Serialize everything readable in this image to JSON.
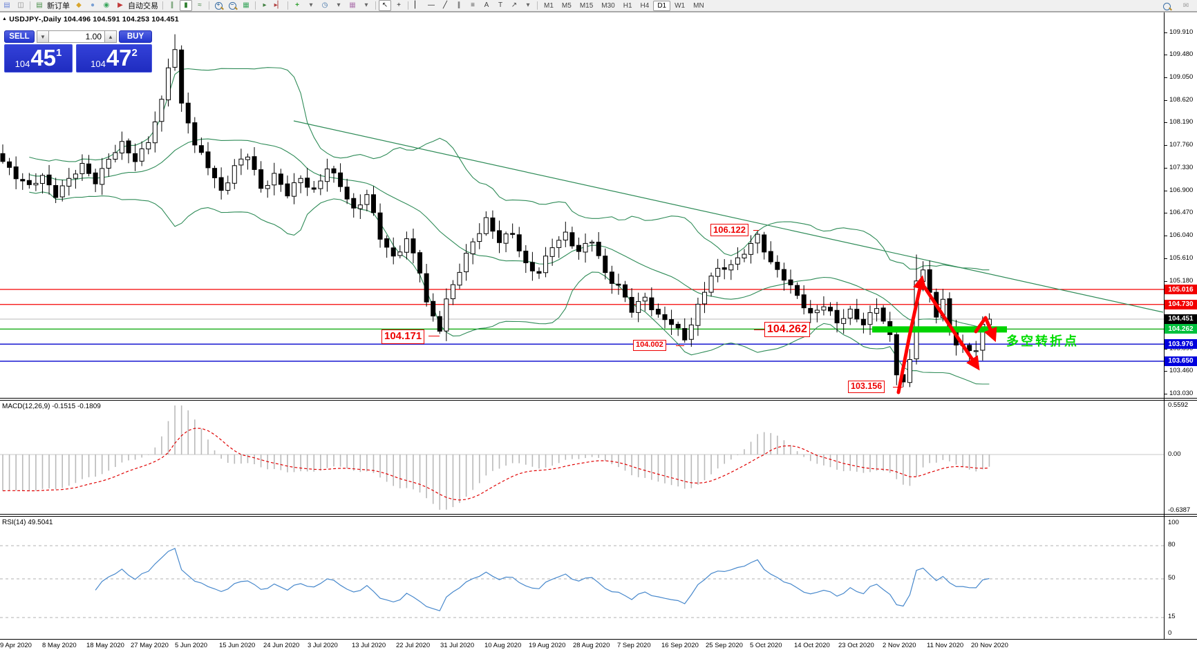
{
  "toolbar": {
    "glyphs": {
      "chart_window": "▤",
      "data_window": "◫",
      "new_order": "▤",
      "metaeditor": "◆",
      "profile": "●",
      "navigator": "◉",
      "autotrade": "▶",
      "bars": "∥",
      "candles": "▮",
      "line_chart": "≈",
      "tiles": "▦",
      "autoscroll": "▸",
      "shift": "▸▏",
      "indicators": "+",
      "clock": "◷",
      "template": "▦",
      "caret": "▾",
      "cursor": "↖",
      "crosshair": "+",
      "vline": "▏",
      "hline": "—",
      "trendline": "╱",
      "channel": "∥",
      "fibonacci": "≡",
      "text": "A",
      "text_label": "T",
      "arrows_tool": "↗",
      "chat": "✉",
      "symbol_marker": "▲"
    },
    "new_order_label": "新订单",
    "autotrade_label": "自动交易",
    "timeframes": [
      "M1",
      "M5",
      "M15",
      "M30",
      "H1",
      "H4",
      "D1",
      "W1",
      "MN"
    ],
    "active_timeframe": "D1"
  },
  "quote_bar": {
    "symbol": "USDJPY-,Daily",
    "open": "104.496",
    "high": "104.591",
    "low": "104.253",
    "close": "104.451"
  },
  "trade_panel": {
    "sell_label": "SELL",
    "buy_label": "BUY",
    "volume": "1.00",
    "sell_small": "104",
    "sell_big": "45",
    "sell_sup": "1",
    "buy_small": "104",
    "buy_big": "47",
    "buy_sup": "2"
  },
  "price_axis": {
    "ticks": [
      "109.910",
      "109.480",
      "109.050",
      "108.620",
      "108.190",
      "107.760",
      "107.330",
      "106.900",
      "106.470",
      "106.040",
      "105.610",
      "105.180",
      "104.750",
      "104.320",
      "103.890",
      "103.460",
      "103.030"
    ],
    "badges": [
      {
        "label": "105.016",
        "price": 105.016,
        "bg": "#f20000"
      },
      {
        "label": "104.730",
        "price": 104.73,
        "bg": "#f20000"
      },
      {
        "label": "104.451",
        "price": 104.451,
        "bg": "#000000"
      },
      {
        "label": "104.262",
        "price": 104.262,
        "bg": "#00c13c"
      },
      {
        "label": "103.976",
        "price": 103.976,
        "bg": "#0000dd"
      },
      {
        "label": "103.650",
        "price": 103.65,
        "bg": "#0000dd"
      }
    ]
  },
  "levels": [
    {
      "price": 105.016,
      "color": "#f40000",
      "w": 1.2
    },
    {
      "price": 104.73,
      "color": "#f40000",
      "w": 1.2
    },
    {
      "price": 104.451,
      "color": "#b8b8b8",
      "w": 1
    },
    {
      "price": 104.262,
      "color": "#00a400",
      "w": 1.2
    },
    {
      "price": 103.976,
      "color": "#0000cc",
      "w": 1.4
    },
    {
      "price": 103.65,
      "color": "#0000cc",
      "w": 1.4
    }
  ],
  "callouts": [
    {
      "text": "106.122"
    },
    {
      "text": "104.171"
    },
    {
      "text": "104.262"
    },
    {
      "text": "104.002"
    },
    {
      "text": "103.156"
    }
  ],
  "annotations": {
    "turning_point_text": "多空转折点",
    "turning_point_color": "#00dc00",
    "green_bar_price": 104.262,
    "arrow_color": "#ff0000"
  },
  "macd_panel": {
    "title": "MACD(12,26,9) -0.1515 -0.1809",
    "scale_top": "0.5592",
    "scale_mid": "0.00",
    "scale_bottom": "-0.6387"
  },
  "rsi_panel": {
    "title": "RSI(14) 49.5041",
    "levels": [
      {
        "label": "100",
        "v": 100,
        "dashed": false
      },
      {
        "label": "80",
        "v": 80,
        "dashed": true
      },
      {
        "label": "50",
        "v": 50,
        "dashed": true
      },
      {
        "label": "15",
        "v": 15,
        "dashed": true
      },
      {
        "label": "0",
        "v": 0,
        "dashed": false
      }
    ]
  },
  "dates": {
    "labels": [
      "9 Apr 2020",
      "8 May 2020",
      "18 May 2020",
      "27 May 2020",
      "5 Jun 2020",
      "15 Jun 2020",
      "24 Jun 2020",
      "3 Jul 2020",
      "13 Jul 2020",
      "22 Jul 2020",
      "31 Jul 2020",
      "10 Aug 2020",
      "19 Aug 2020",
      "28 Aug 2020",
      "7 Sep 2020",
      "16 Sep 2020",
      "25 Sep 2020",
      "5 Oct 2020",
      "14 Oct 2020",
      "23 Oct 2020",
      "2 Nov 2020",
      "11 Nov 2020",
      "20 Nov 2020"
    ]
  },
  "chart_data": {
    "type": "candlestick",
    "symbol": "USDJPY",
    "timeframe": "Daily",
    "bars": 150,
    "band_color": "#2E8B57",
    "bollinger": {
      "period": 20,
      "dev": 2
    },
    "macd": {
      "fast": 12,
      "slow": 26,
      "signal": 9
    },
    "rsi_period": 14,
    "price_path": [
      [
        0,
        107.45
      ],
      [
        2,
        107.2
      ],
      [
        4,
        106.95
      ],
      [
        6,
        107.15
      ],
      [
        8,
        106.85
      ],
      [
        10,
        107.1
      ],
      [
        12,
        107.35
      ],
      [
        14,
        107.1
      ],
      [
        16,
        107.5
      ],
      [
        18,
        107.75
      ],
      [
        20,
        107.5
      ],
      [
        22,
        107.85
      ],
      [
        24,
        108.55
      ],
      [
        25,
        109.25
      ],
      [
        26,
        109.6
      ],
      [
        27,
        108.55
      ],
      [
        28,
        108.25
      ],
      [
        29,
        107.75
      ],
      [
        31,
        107.35
      ],
      [
        33,
        106.9
      ],
      [
        35,
        107.35
      ],
      [
        37,
        107.55
      ],
      [
        39,
        106.95
      ],
      [
        41,
        107.2
      ],
      [
        43,
        106.8
      ],
      [
        45,
        107.15
      ],
      [
        47,
        106.9
      ],
      [
        49,
        107.3
      ],
      [
        51,
        107.0
      ],
      [
        53,
        106.55
      ],
      [
        55,
        106.8
      ],
      [
        57,
        106.0
      ],
      [
        59,
        105.65
      ],
      [
        61,
        105.95
      ],
      [
        63,
        105.35
      ],
      [
        64,
        104.75
      ],
      [
        66,
        104.3
      ],
      [
        67,
        104.8
      ],
      [
        69,
        105.35
      ],
      [
        71,
        105.95
      ],
      [
        73,
        106.35
      ],
      [
        75,
        105.9
      ],
      [
        77,
        106.1
      ],
      [
        79,
        105.5
      ],
      [
        81,
        105.3
      ],
      [
        83,
        105.85
      ],
      [
        85,
        106.1
      ],
      [
        87,
        105.7
      ],
      [
        89,
        105.95
      ],
      [
        91,
        105.35
      ],
      [
        93,
        105.05
      ],
      [
        95,
        104.6
      ],
      [
        97,
        104.9
      ],
      [
        99,
        104.5
      ],
      [
        101,
        104.35
      ],
      [
        103,
        104.1
      ],
      [
        105,
        104.7
      ],
      [
        107,
        105.25
      ],
      [
        109,
        105.45
      ],
      [
        111,
        105.6
      ],
      [
        113,
        105.85
      ],
      [
        114,
        106.0
      ],
      [
        116,
        105.55
      ],
      [
        118,
        105.25
      ],
      [
        120,
        104.85
      ],
      [
        122,
        104.55
      ],
      [
        124,
        104.75
      ],
      [
        126,
        104.35
      ],
      [
        128,
        104.6
      ],
      [
        130,
        104.4
      ],
      [
        132,
        104.65
      ],
      [
        133,
        104.4
      ],
      [
        134,
        104.1
      ],
      [
        135,
        103.45
      ],
      [
        136,
        103.3
      ],
      [
        137,
        103.65
      ],
      [
        138,
        105.2
      ],
      [
        139,
        105.35
      ],
      [
        140,
        104.9
      ],
      [
        141,
        104.55
      ],
      [
        142,
        104.85
      ],
      [
        143,
        104.3
      ],
      [
        144,
        104.0
      ],
      [
        145,
        103.9
      ],
      [
        146,
        103.8
      ],
      [
        147,
        103.9
      ],
      [
        148,
        104.35
      ],
      [
        149,
        104.45
      ]
    ],
    "key_points": {
      "26": {
        "high": 109.87
      },
      "66": {
        "low": 104.171
      },
      "103": {
        "low": 104.002
      },
      "114": {
        "high": 106.122
      },
      "136": {
        "low": 103.156
      },
      "138": {
        "high": 105.68
      },
      "146": {
        "low": 103.65
      },
      "149": {
        "close": 104.451
      }
    }
  }
}
